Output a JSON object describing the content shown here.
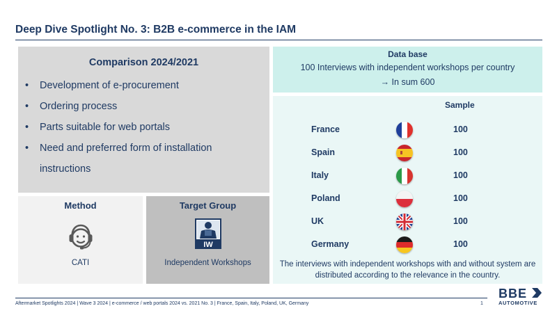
{
  "title": "Deep Dive Spotlight No. 3: B2B e-commerce in the IAM",
  "comparison": {
    "title": "Comparison 2024/2021",
    "bullet_glyph": "•",
    "items": [
      "Development of e-procurement",
      "Ordering process",
      "Parts suitable for web portals",
      "Need and preferred form of installation instructions"
    ]
  },
  "method": {
    "title": "Method",
    "icon": "headset-icon",
    "value": "CATI"
  },
  "target_group": {
    "title": "Target Group",
    "icon": "workshop-worker-icon",
    "icon_label": "IW",
    "value": "Independent Workshops"
  },
  "database": {
    "title": "Data base",
    "line1": "100 Interviews with independent workshops per country",
    "line2": "→ In sum 600"
  },
  "sample": {
    "title": "Sample",
    "rows": [
      {
        "country": "France",
        "flag": "france-flag-icon",
        "count": "100"
      },
      {
        "country": "Spain",
        "flag": "spain-flag-icon",
        "count": "100"
      },
      {
        "country": "Italy",
        "flag": "italy-flag-icon",
        "count": "100"
      },
      {
        "country": "Poland",
        "flag": "poland-flag-icon",
        "count": "100"
      },
      {
        "country": "UK",
        "flag": "uk-flag-icon",
        "count": "100"
      },
      {
        "country": "Germany",
        "flag": "germany-flag-icon",
        "count": "100"
      }
    ],
    "note": "The interviews with independent workshops with and without system are distributed according to the relevance in the country."
  },
  "footer": {
    "text": "Aftermarket Spotlights 2024 | Wave 3 2024 | e-commerce / web portals 2024 vs. 2021 No. 3 | France, Spain, Italy, Poland, UK, Germany",
    "page_number": "1"
  },
  "logo": {
    "line1": "BBE",
    "line2": "AUTOMOTIVE"
  },
  "colors": {
    "navy": "#1f3a63",
    "grey_panel": "#d9d9d9",
    "light_grey_panel": "#f2f2f2",
    "mid_grey_panel": "#bfbfbf",
    "teal_header": "#cdf0ec",
    "teal_panel": "#eaf7f6"
  }
}
